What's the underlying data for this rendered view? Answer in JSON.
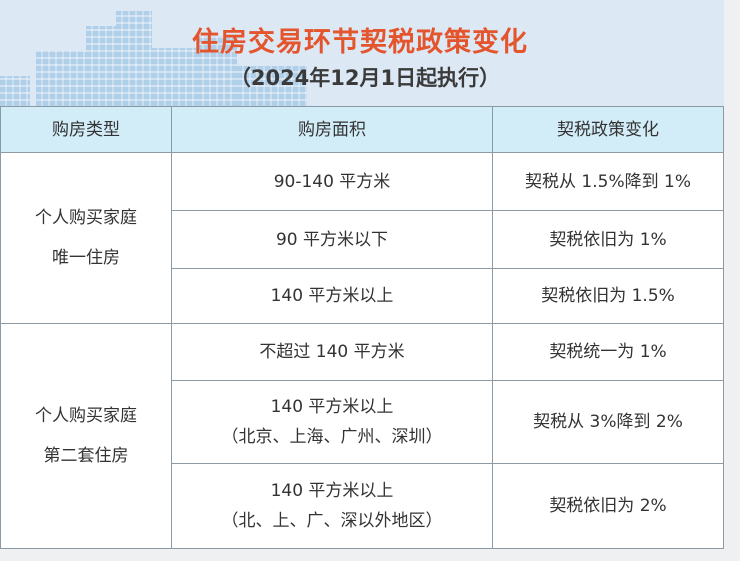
{
  "header": {
    "title": "住房交易环节契税政策变化",
    "subtitle": "（2024年12月1日起执行）"
  },
  "table": {
    "columns": [
      "购房类型",
      "购房面积",
      "契税政策变化"
    ],
    "groups": [
      {
        "type_line1": "个人购买家庭",
        "type_line2": "唯一住房",
        "rows": [
          {
            "area": "90-140 平方米",
            "area_note": "",
            "policy": "契税从 1.5%降到 1%"
          },
          {
            "area": "90 平方米以下",
            "area_note": "",
            "policy": "契税依旧为 1%"
          },
          {
            "area": "140 平方米以上",
            "area_note": "",
            "policy": "契税依旧为 1.5%"
          }
        ]
      },
      {
        "type_line1": "个人购买家庭",
        "type_line2": "第二套住房",
        "rows": [
          {
            "area": "不超过 140 平方米",
            "area_note": "",
            "policy": "契税统一为 1%"
          },
          {
            "area": "140 平方米以上",
            "area_note": "（北京、上海、广州、深圳）",
            "policy": "契税从 3%降到 2%"
          },
          {
            "area": "140 平方米以上",
            "area_note": "（北、上、广、深以外地区）",
            "policy": "契税依旧为 2%"
          }
        ]
      }
    ]
  },
  "colors": {
    "title": "#e4552d",
    "header_bg": "#d2ecf8",
    "banner_bg": "#dce8f3"
  }
}
